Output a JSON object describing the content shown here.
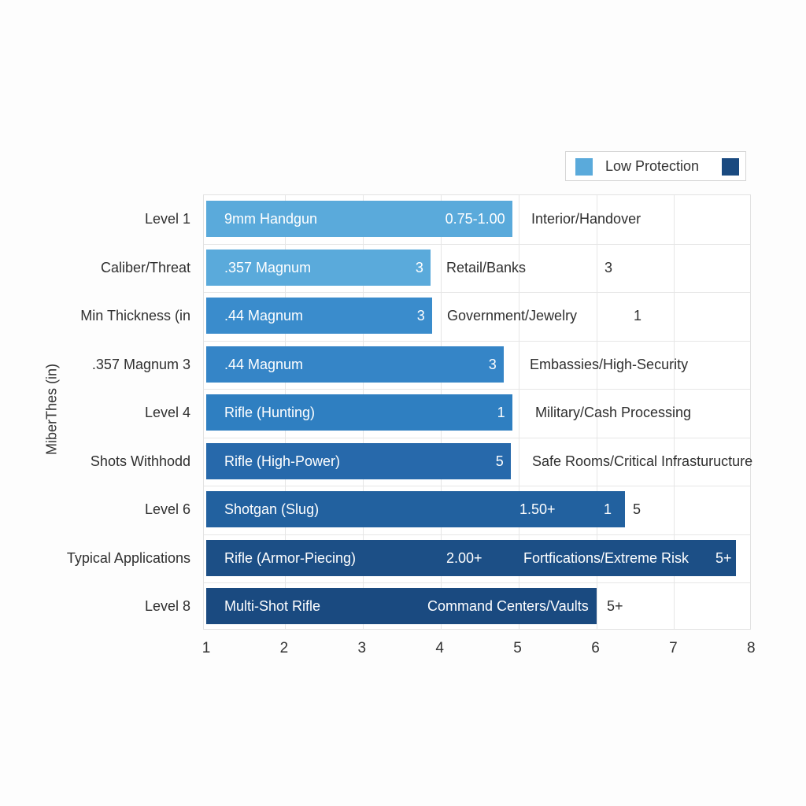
{
  "colors": {
    "low": "#5aaadb",
    "high": "#1a4a80",
    "grid": "#e6e6e6"
  },
  "legend": {
    "label": "Low Protection",
    "swatch_low": "#5aaadb",
    "swatch_high": "#1a4a80"
  },
  "y_axis_title": "MiberThes (in)",
  "x_ticks": [
    "1",
    "2",
    "3",
    "4",
    "5",
    "6",
    "7",
    "8"
  ],
  "rows": [
    {
      "label": "Level 1",
      "threat": "9mm Handgun",
      "in_bar_value": "0.75-1.00",
      "outside": [
        {
          "text": "Interior/Handover",
          "x": 675
        }
      ],
      "color": "#5aaadb",
      "end": 4.93
    },
    {
      "label": "Caliber/Threat",
      "threat": ".357 Magnum",
      "in_bar_value": "3",
      "outside": [
        {
          "text": "Retail/Banks",
          "x": 567
        },
        {
          "text": "3",
          "x": 768
        }
      ],
      "color": "#5aaadb",
      "end": 3.88
    },
    {
      "label": "Min Thickness (in",
      "threat": ".44 Magnum",
      "in_bar_value": "3",
      "outside": [
        {
          "text": "Government/Jewelry",
          "x": 568
        },
        {
          "text": "1",
          "x": 805
        }
      ],
      "color": "#3a8ccc",
      "end": 3.9
    },
    {
      "label": ".357 Magnum 3",
      "threat": ".44 Magnum",
      "in_bar_value": "3",
      "outside": [
        {
          "text": "Embassies/High-Security",
          "x": 673
        }
      ],
      "color": "#3585c7",
      "end": 4.82
    },
    {
      "label": "Level 4",
      "threat": "Rifle (Hunting)",
      "in_bar_value": "1",
      "outside": [
        {
          "text": "Military/Cash Processing",
          "x": 680
        }
      ],
      "color": "#2f7fc1",
      "end": 4.93
    },
    {
      "label": "Shots Withhodd",
      "threat": "Rifle (High-Power)",
      "in_bar_value": "5",
      "outside": [
        {
          "text": "Safe Rooms/Critical Infrasturucture",
          "x": 676
        }
      ],
      "color": "#2769ab",
      "end": 4.91
    },
    {
      "label": "Level 6",
      "threat": "Shotgan (Slug)",
      "in_bar_value": "1.50+",
      "in_bar_extra": "1",
      "outside": [
        {
          "text": "5",
          "x": 804
        }
      ],
      "color": "#22619f",
      "end": 6.38
    },
    {
      "label": "Typical Applications",
      "threat": "Rifle (Armor-Piecing)",
      "in_bar_value": "2.00+",
      "in_bar_app": "Fortfications/Extreme Risk",
      "in_bar_extra": "5+",
      "outside": [],
      "color": "#1c4f86",
      "end": 7.8
    },
    {
      "label": "Level 8",
      "threat": "Multi-Shot Rifle",
      "in_bar_app": "Command Centers/Vaults",
      "outside": [
        {
          "text": "5+",
          "x": 771
        }
      ],
      "color": "#1a4a80",
      "end": 6.02
    }
  ],
  "chart_data": {
    "type": "bar",
    "orientation": "horizontal",
    "title": "",
    "xlabel": "",
    "ylabel": "MiberThes (in)",
    "xlim": [
      1,
      8
    ],
    "x_ticks": [
      1,
      2,
      3,
      4,
      5,
      6,
      7,
      8
    ],
    "grid": true,
    "legend": {
      "entries": [
        "Low Protection"
      ],
      "position": "top-right"
    },
    "categories": [
      "Level 1",
      "Caliber/Threat",
      "Min Thickness (in",
      ".357 Magnum 3",
      "Level 4",
      "Shots Withhodd",
      "Level 6",
      "Typical Applications",
      "Level 8"
    ],
    "values": [
      4.93,
      3.88,
      3.9,
      4.82,
      4.93,
      4.91,
      6.38,
      7.8,
      6.02
    ],
    "bar_labels": [
      "9mm Handgun",
      ".357 Magnum",
      ".44 Magnum",
      ".44 Magnum",
      "Rifle (Hunting)",
      "Rifle (High-Power)",
      "Shotgan (Slug)",
      "Rifle (Armor-Piecing)",
      "Multi-Shot Rifle"
    ],
    "annotations": [
      "0.75-1.00",
      "Interior/Handover",
      "3",
      "Retail/Banks",
      "3",
      "3",
      "Government/Jewelry",
      "1",
      "3",
      "Embassies/High-Security",
      "1",
      "Military/Cash Processing",
      "5",
      "Safe Rooms/Critical Infrasturucture",
      "1.50+",
      "1",
      "5",
      "2.00+",
      "Fortfications/Extreme Risk",
      "5+",
      "Command Centers/Vaults",
      "5+"
    ]
  }
}
